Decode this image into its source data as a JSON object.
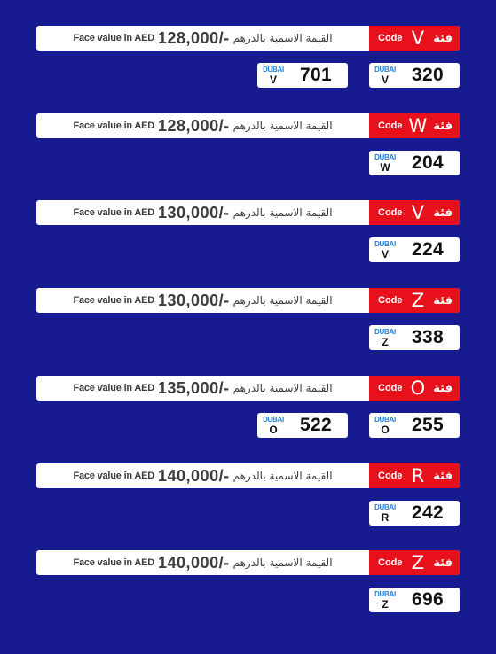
{
  "colors": {
    "background": "#181a8f",
    "code_red": "#e8101a",
    "dubai_blue": "#2a7fd4"
  },
  "labels": {
    "face_value_en": "Face value in AED",
    "face_value_ar": "القيمة الاسمية بالدرهم",
    "code_en": "Code",
    "code_ar": "فئة",
    "plate_emirate": "DUBAI"
  },
  "groups": [
    {
      "code": "V",
      "value": "128,000/-",
      "plates": [
        {
          "letter": "V",
          "number": "320"
        },
        {
          "letter": "V",
          "number": "701"
        }
      ]
    },
    {
      "code": "W",
      "value": "128,000/-",
      "plates": [
        {
          "letter": "W",
          "number": "204"
        }
      ]
    },
    {
      "code": "V",
      "value": "130,000/-",
      "plates": [
        {
          "letter": "V",
          "number": "224"
        }
      ]
    },
    {
      "code": "Z",
      "value": "130,000/-",
      "plates": [
        {
          "letter": "Z",
          "number": "338"
        }
      ]
    },
    {
      "code": "O",
      "value": "135,000/-",
      "plates": [
        {
          "letter": "O",
          "number": "255"
        },
        {
          "letter": "O",
          "number": "522"
        }
      ]
    },
    {
      "code": "R",
      "value": "140,000/-",
      "plates": [
        {
          "letter": "R",
          "number": "242"
        }
      ]
    },
    {
      "code": "Z",
      "value": "140,000/-",
      "plates": [
        {
          "letter": "Z",
          "number": "696"
        }
      ]
    }
  ]
}
